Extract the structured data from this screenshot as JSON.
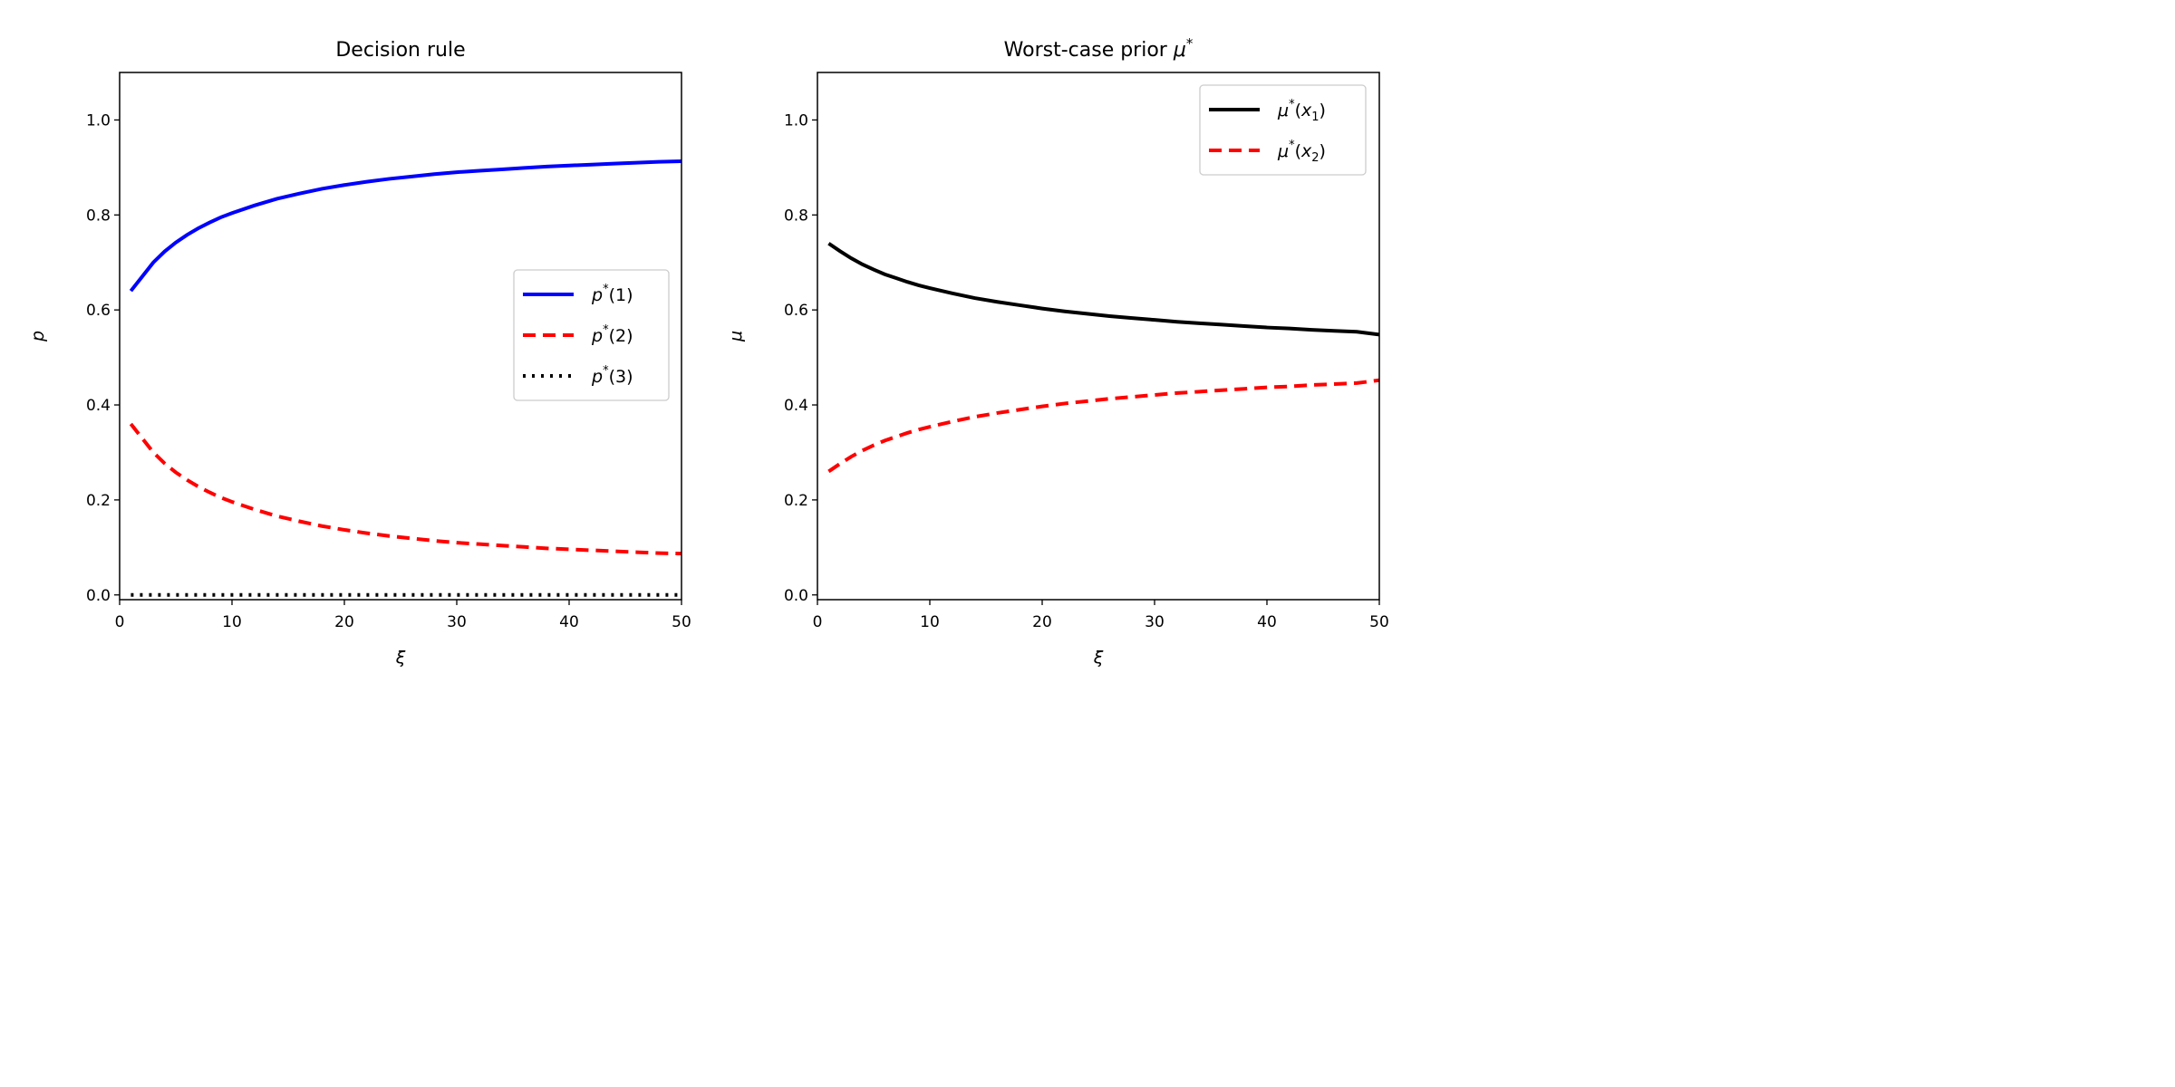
{
  "chart_data": [
    {
      "type": "line",
      "title": "Decision rule",
      "xlabel": "ξ",
      "ylabel": "p",
      "xlim": [
        0,
        50
      ],
      "ylim": [
        -0.01,
        1.1
      ],
      "xticks": [
        0,
        10,
        20,
        30,
        40,
        50
      ],
      "xtick_labels": [
        "0",
        "10",
        "20",
        "30",
        "40",
        "50"
      ],
      "yticks": [
        0.0,
        0.2,
        0.4,
        0.6,
        0.8,
        1.0
      ],
      "ytick_labels": [
        "0.0",
        "0.2",
        "0.4",
        "0.6",
        "0.8",
        "1.0"
      ],
      "grid": false,
      "legend_position": "center-right",
      "x": [
        1,
        2,
        3,
        4,
        5,
        6,
        7,
        8,
        9,
        10,
        12,
        14,
        16,
        18,
        20,
        22,
        24,
        26,
        28,
        30,
        32,
        34,
        36,
        38,
        40,
        42,
        44,
        46,
        48,
        50
      ],
      "series": [
        {
          "name": "p*(1)",
          "name_parts": {
            "base": "p",
            "sup": "*",
            "arg": "(1)"
          },
          "color": "#0000ff",
          "style": "solid",
          "values": [
            0.64,
            0.67,
            0.7,
            0.723,
            0.742,
            0.758,
            0.772,
            0.784,
            0.795,
            0.804,
            0.82,
            0.834,
            0.845,
            0.855,
            0.863,
            0.87,
            0.876,
            0.881,
            0.886,
            0.89,
            0.893,
            0.896,
            0.899,
            0.902,
            0.904,
            0.906,
            0.908,
            0.91,
            0.912,
            0.913
          ]
        },
        {
          "name": "p*(2)",
          "name_parts": {
            "base": "p",
            "sup": "*",
            "arg": "(2)"
          },
          "color": "#ff0000",
          "style": "dashed",
          "values": [
            0.36,
            0.33,
            0.3,
            0.277,
            0.258,
            0.242,
            0.228,
            0.216,
            0.205,
            0.196,
            0.18,
            0.166,
            0.155,
            0.145,
            0.137,
            0.13,
            0.124,
            0.119,
            0.114,
            0.11,
            0.107,
            0.104,
            0.101,
            0.098,
            0.096,
            0.094,
            0.092,
            0.09,
            0.088,
            0.087
          ]
        },
        {
          "name": "p*(3)",
          "name_parts": {
            "base": "p",
            "sup": "*",
            "arg": "(3)"
          },
          "color": "#000000",
          "style": "dotted",
          "values": [
            0,
            0,
            0,
            0,
            0,
            0,
            0,
            0,
            0,
            0,
            0,
            0,
            0,
            0,
            0,
            0,
            0,
            0,
            0,
            0,
            0,
            0,
            0,
            0,
            0,
            0,
            0,
            0,
            0,
            0
          ]
        }
      ]
    },
    {
      "type": "line",
      "title": "Worst-case prior μ*",
      "title_parts": {
        "text": "Worst-case prior ",
        "symbol": "μ",
        "sup": "*"
      },
      "xlabel": "ξ",
      "ylabel": "μ",
      "xlim": [
        0,
        50
      ],
      "ylim": [
        -0.01,
        1.1
      ],
      "xticks": [
        0,
        10,
        20,
        30,
        40,
        50
      ],
      "xtick_labels": [
        "0",
        "10",
        "20",
        "30",
        "40",
        "50"
      ],
      "yticks": [
        0.0,
        0.2,
        0.4,
        0.6,
        0.8,
        1.0
      ],
      "ytick_labels": [
        "0.0",
        "0.2",
        "0.4",
        "0.6",
        "0.8",
        "1.0"
      ],
      "grid": false,
      "legend_position": "top-right",
      "x": [
        1,
        2,
        3,
        4,
        5,
        6,
        7,
        8,
        9,
        10,
        12,
        14,
        16,
        18,
        20,
        22,
        24,
        26,
        28,
        30,
        32,
        34,
        36,
        38,
        40,
        42,
        44,
        46,
        48,
        50
      ],
      "series": [
        {
          "name": "μ*(x1)",
          "name_parts": {
            "base": "μ",
            "sup": "*",
            "open": "(",
            "var": "x",
            "sub": "1",
            "close": ")"
          },
          "color": "#000000",
          "style": "solid",
          "values": [
            0.74,
            0.724,
            0.709,
            0.696,
            0.685,
            0.675,
            0.667,
            0.659,
            0.652,
            0.646,
            0.635,
            0.625,
            0.617,
            0.61,
            0.603,
            0.597,
            0.592,
            0.587,
            0.583,
            0.579,
            0.575,
            0.572,
            0.569,
            0.566,
            0.563,
            0.561,
            0.558,
            0.556,
            0.554,
            0.548
          ]
        },
        {
          "name": "μ*(x2)",
          "name_parts": {
            "base": "μ",
            "sup": "*",
            "open": "(",
            "var": "x",
            "sub": "2",
            "close": ")"
          },
          "color": "#ff0000",
          "style": "dashed",
          "values": [
            0.26,
            0.276,
            0.291,
            0.304,
            0.315,
            0.325,
            0.333,
            0.341,
            0.348,
            0.354,
            0.365,
            0.375,
            0.383,
            0.39,
            0.397,
            0.403,
            0.408,
            0.413,
            0.417,
            0.421,
            0.425,
            0.428,
            0.431,
            0.434,
            0.437,
            0.439,
            0.442,
            0.444,
            0.446,
            0.452
          ]
        }
      ]
    }
  ]
}
